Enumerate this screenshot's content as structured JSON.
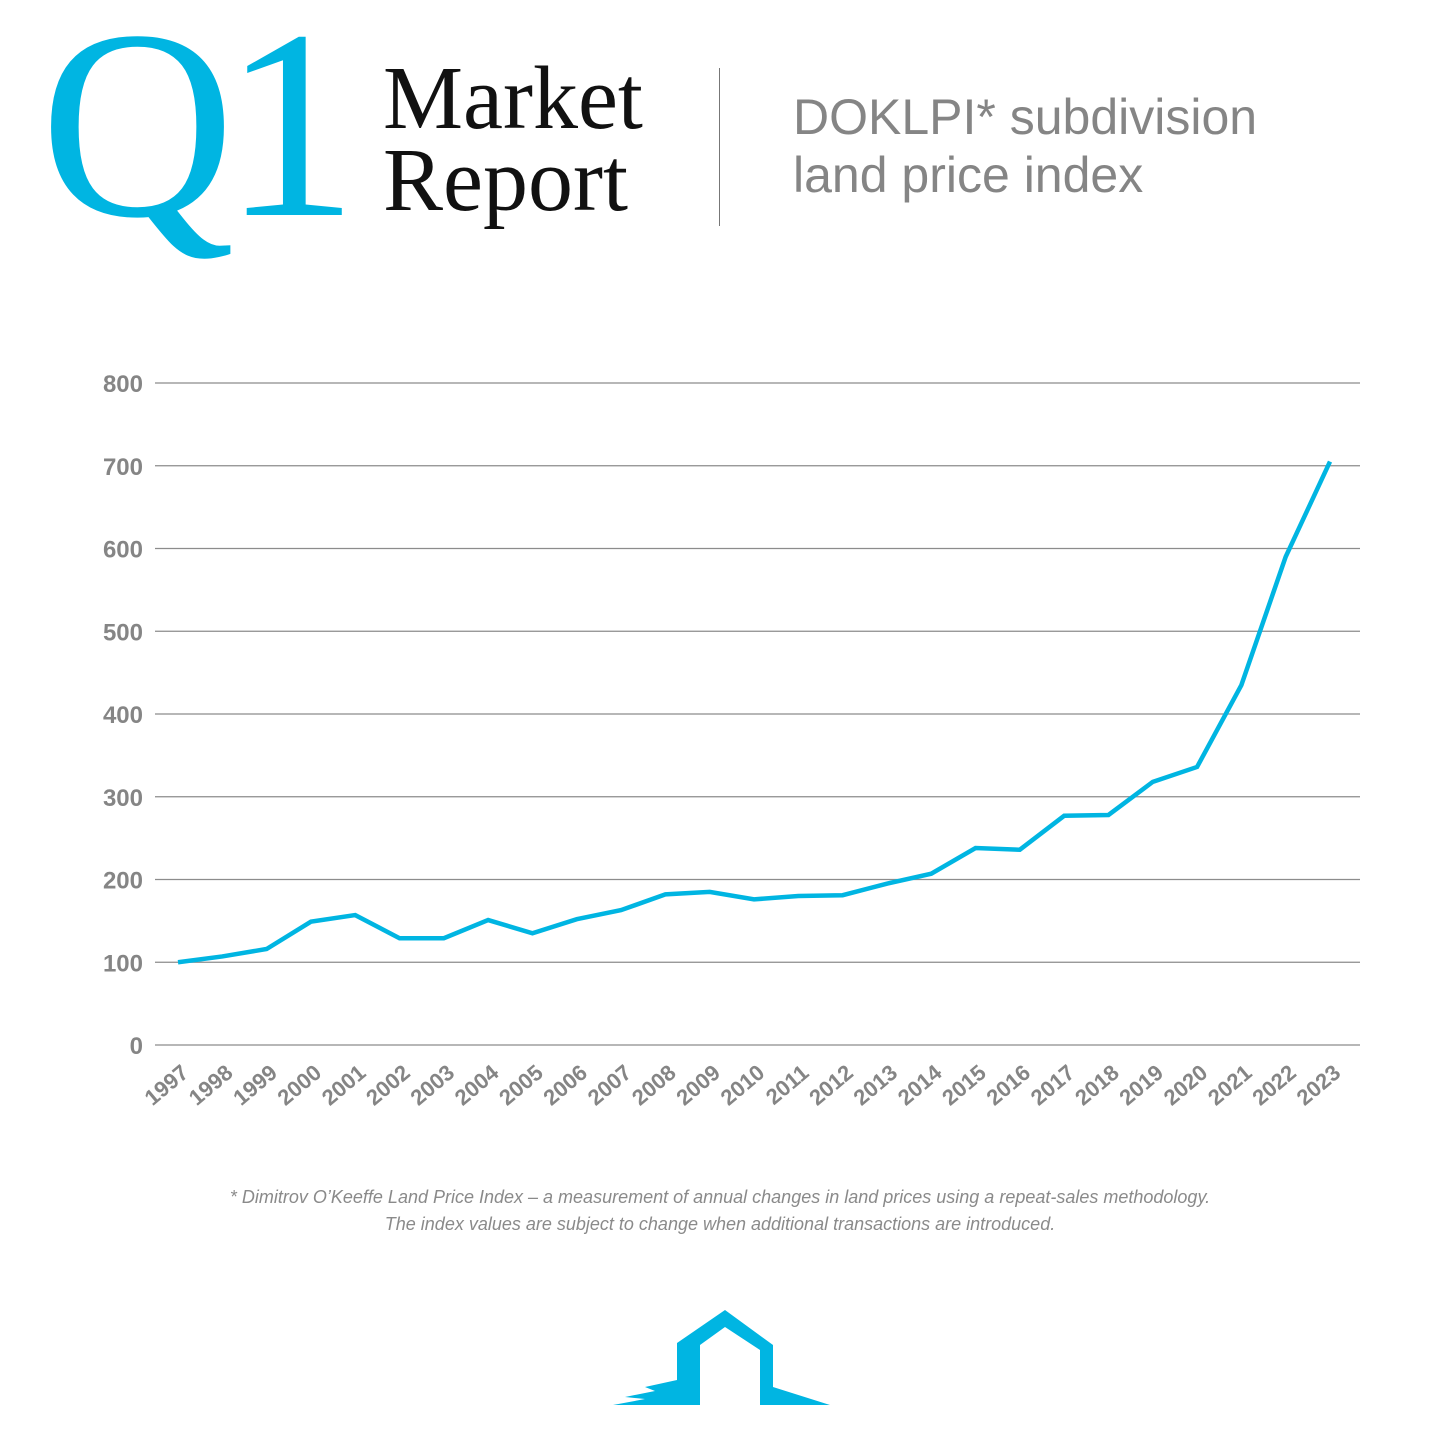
{
  "header": {
    "q": "Q1",
    "title_line1": "Market",
    "title_line2": "Report",
    "subtitle_line1": "DOKLPI* subdivision",
    "subtitle_line2": "land price index"
  },
  "colors": {
    "accent": "#00b5e2",
    "text_gray": "#858585",
    "grid": "#8c8c8c"
  },
  "chart_data": {
    "type": "line",
    "title": "",
    "xlabel": "",
    "ylabel": "",
    "ylim": [
      0,
      800
    ],
    "yticks": [
      "0",
      "100",
      "200",
      "300",
      "400",
      "500",
      "600",
      "700",
      "800"
    ],
    "grid": true,
    "categories": [
      "1997",
      "1998",
      "1999",
      "2000",
      "2001",
      "2002",
      "2003",
      "2004",
      "2005",
      "2006",
      "2007",
      "2008",
      "2009",
      "2010",
      "2011",
      "2012",
      "2013",
      "2014",
      "2015",
      "2016",
      "2017",
      "2018",
      "2019",
      "2020",
      "2021",
      "2022",
      "2023"
    ],
    "values": [
      100,
      107,
      116,
      149,
      157,
      129,
      129,
      151,
      135,
      152,
      163,
      182,
      185,
      176,
      180,
      181,
      195,
      207,
      238,
      236,
      277,
      278,
      318,
      336,
      435,
      590,
      705
    ]
  },
  "footnote": {
    "line1": "* Dimitrov O’Keeffe Land Price Index – a measurement of annual changes in land prices using a repeat-sales methodology.",
    "line2": "The index values are subject to change when additional transactions are introduced."
  },
  "logo": {
    "icon": "house-brush-icon"
  }
}
